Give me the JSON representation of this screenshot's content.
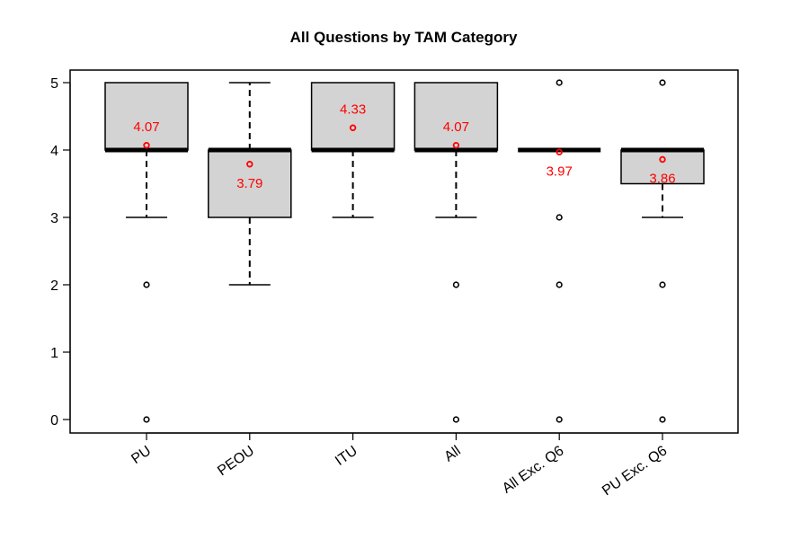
{
  "chart_data": {
    "type": "boxplot",
    "title": "All Questions by TAM Category",
    "xlabel": "",
    "ylabel": "",
    "ylim": [
      -0.2,
      5.2
    ],
    "yticks": [
      0,
      1,
      2,
      3,
      4,
      5
    ],
    "grid": false,
    "colors": {
      "box_fill": "#d3d3d3",
      "mean": "#ff0000",
      "stroke": "#000000"
    },
    "categories": [
      "PU",
      "PEOU",
      "ITU",
      "All",
      "All Exc. Q6",
      "PU Exc. Q6"
    ],
    "boxes": [
      {
        "q1": 4,
        "median": 4,
        "q3": 5,
        "whisker_low": 3,
        "whisker_high": 5,
        "outliers": [
          2,
          0
        ],
        "mean": 4.07,
        "mean_label": "4.07",
        "label_pos": "above"
      },
      {
        "q1": 3,
        "median": 4,
        "q3": 4,
        "whisker_low": 2,
        "whisker_high": 5,
        "outliers": [],
        "mean": 3.79,
        "mean_label": "3.79",
        "label_pos": "below"
      },
      {
        "q1": 4,
        "median": 4,
        "q3": 5,
        "whisker_low": 3,
        "whisker_high": 5,
        "outliers": [],
        "mean": 4.33,
        "mean_label": "4.33",
        "label_pos": "above"
      },
      {
        "q1": 4,
        "median": 4,
        "q3": 5,
        "whisker_low": 3,
        "whisker_high": 5,
        "outliers": [
          2,
          0
        ],
        "mean": 4.07,
        "mean_label": "4.07",
        "label_pos": "above"
      },
      {
        "q1": 4,
        "median": 4,
        "q3": 4,
        "whisker_low": 4,
        "whisker_high": 4,
        "outliers": [
          5,
          3,
          2,
          0
        ],
        "mean": 3.97,
        "mean_label": "3.97",
        "label_pos": "below"
      },
      {
        "q1": 3.5,
        "median": 4,
        "q3": 4,
        "whisker_low": 3,
        "whisker_high": 4,
        "outliers": [
          5,
          2,
          0
        ],
        "mean": 3.86,
        "mean_label": "3.86",
        "label_pos": "below"
      }
    ]
  }
}
